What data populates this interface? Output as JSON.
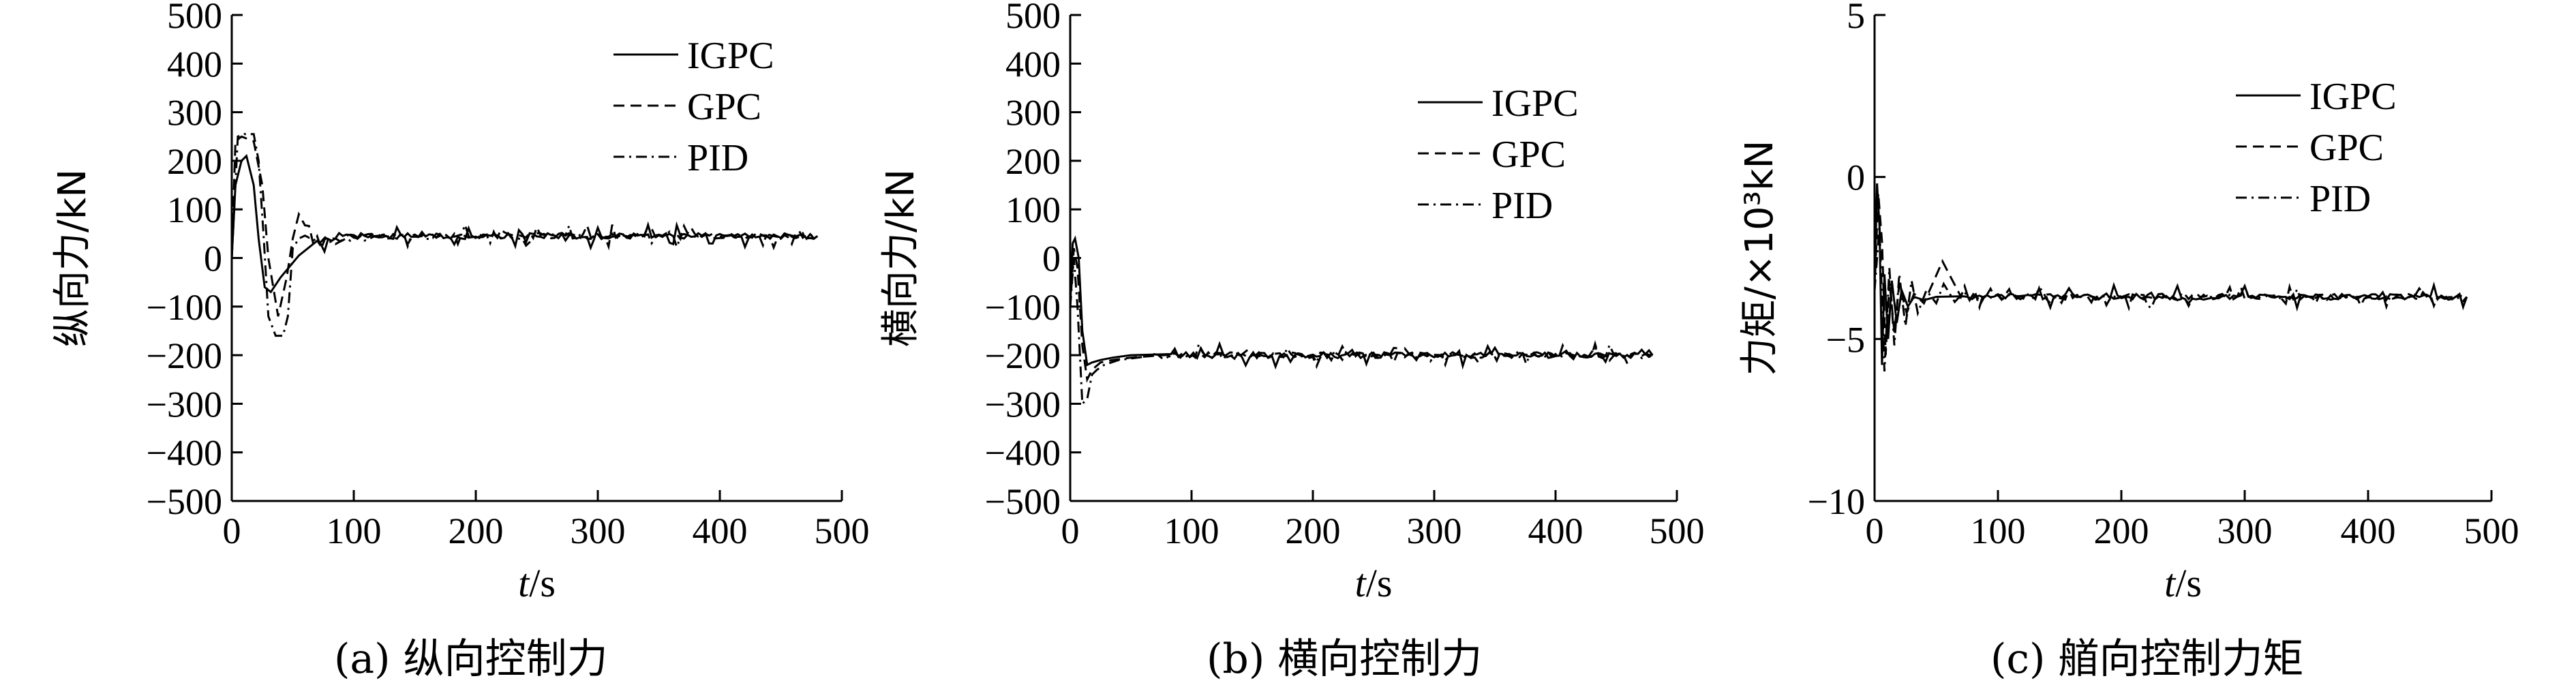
{
  "chart_data": [
    {
      "type": "line",
      "ylabel": "纵向力/kN",
      "xlabel_var": "t",
      "xlabel_unit": "/s",
      "caption": "(a) 纵向控制力",
      "xlim": [
        0,
        500
      ],
      "ylim": [
        -500,
        500
      ],
      "xticks": [
        "0",
        "100",
        "200",
        "300",
        "400",
        "500"
      ],
      "yticks": [
        "−500",
        "−400",
        "−300",
        "−200",
        "−100",
        "0",
        "100",
        "200",
        "300",
        "400",
        "500"
      ],
      "legend_position": "top-right",
      "series": [
        {
          "name": "IGPC",
          "style": "solid",
          "x": [
            0,
            3,
            8,
            12,
            18,
            22,
            27,
            32,
            40,
            55,
            70,
            85,
            100,
            150,
            200,
            250,
            300,
            350,
            400,
            450,
            480
          ],
          "y": [
            0,
            150,
            200,
            210,
            150,
            40,
            -60,
            -70,
            -40,
            5,
            30,
            40,
            45,
            45,
            45,
            45,
            45,
            45,
            45,
            45,
            45
          ]
        },
        {
          "name": "GPC",
          "style": "dashed",
          "x": [
            0,
            3,
            8,
            18,
            25,
            30,
            38,
            45,
            50,
            55,
            60,
            70,
            80,
            100,
            150,
            200,
            250,
            300,
            350,
            400,
            450,
            480
          ],
          "y": [
            0,
            240,
            250,
            240,
            150,
            0,
            -120,
            -40,
            40,
            90,
            70,
            40,
            35,
            45,
            45,
            45,
            45,
            45,
            45,
            45,
            45,
            45
          ]
        },
        {
          "name": "PID",
          "style": "dash-dot",
          "x": [
            0,
            5,
            10,
            18,
            22,
            26,
            30,
            36,
            42,
            46,
            50,
            55,
            60,
            70,
            85,
            100,
            150,
            200,
            250,
            300,
            350,
            400,
            450,
            480
          ],
          "y": [
            0,
            250,
            255,
            255,
            200,
            50,
            -120,
            -160,
            -160,
            -120,
            20,
            40,
            50,
            30,
            30,
            40,
            45,
            45,
            45,
            45,
            45,
            45,
            45,
            45
          ]
        }
      ]
    },
    {
      "type": "line",
      "ylabel": "横向力/kN",
      "xlabel_var": "t",
      "xlabel_unit": "/s",
      "caption": "(b) 横向控制力",
      "xlim": [
        0,
        500
      ],
      "ylim": [
        -500,
        500
      ],
      "xticks": [
        "0",
        "100",
        "200",
        "300",
        "400",
        "500"
      ],
      "yticks": [
        "−500",
        "−400",
        "−300",
        "−200",
        "−100",
        "0",
        "100",
        "200",
        "300",
        "400",
        "500"
      ],
      "legend_position": "top-right",
      "series": [
        {
          "name": "IGPC",
          "style": "solid",
          "x": [
            0,
            2,
            4,
            7,
            10,
            14,
            18,
            25,
            35,
            50,
            80,
            120,
            160,
            200,
            250,
            300,
            350,
            400,
            450,
            480
          ],
          "y": [
            -100,
            30,
            40,
            0,
            -150,
            -220,
            -215,
            -210,
            -205,
            -200,
            -200,
            -200,
            -200,
            -200,
            -200,
            -200,
            -200,
            -200,
            -200,
            -200
          ]
        },
        {
          "name": "GPC",
          "style": "dashed",
          "x": [
            0,
            3,
            6,
            10,
            14,
            18,
            25,
            35,
            50,
            80,
            120,
            200,
            300,
            400,
            480
          ],
          "y": [
            -100,
            20,
            -20,
            -180,
            -250,
            -230,
            -215,
            -210,
            -205,
            -200,
            -200,
            -200,
            -200,
            -200,
            -200
          ]
        },
        {
          "name": "PID",
          "style": "dash-dot",
          "x": [
            0,
            3,
            6,
            10,
            14,
            18,
            22,
            28,
            40,
            60,
            100,
            200,
            300,
            400,
            480
          ],
          "y": [
            -100,
            0,
            -100,
            -300,
            -290,
            -240,
            -230,
            -220,
            -210,
            -205,
            -200,
            -200,
            -200,
            -200,
            -200
          ]
        }
      ]
    },
    {
      "type": "line",
      "ylabel": "力矩/×10³kN",
      "xlabel_var": "t",
      "xlabel_unit": "/s",
      "caption": "(c) 艏向控制力矩",
      "xlim": [
        0,
        500
      ],
      "ylim": [
        -10,
        5
      ],
      "xticks": [
        "0",
        "100",
        "200",
        "300",
        "400",
        "500"
      ],
      "yticks": [
        "−10",
        "−5",
        "0",
        "5"
      ],
      "legend_position": "top-right",
      "series": [
        {
          "name": "IGPC",
          "style": "solid",
          "x": [
            0,
            2,
            4,
            6,
            8,
            11,
            14,
            18,
            22,
            27,
            32,
            40,
            50,
            70,
            100,
            200,
            300,
            400,
            480
          ],
          "y": [
            -3.5,
            -0.2,
            -1.5,
            -5.8,
            -3.0,
            -5.0,
            -3.2,
            -4.5,
            -3.5,
            -4.0,
            -3.7,
            -3.8,
            -3.7,
            -3.7,
            -3.7,
            -3.7,
            -3.7,
            -3.7,
            -3.7
          ]
        },
        {
          "name": "GPC",
          "style": "dashed",
          "x": [
            0,
            3,
            6,
            9,
            12,
            16,
            20,
            26,
            32,
            40,
            55,
            70,
            100,
            200,
            300,
            400,
            480
          ],
          "y": [
            -3.5,
            -0.5,
            -2.0,
            -5.5,
            -3.2,
            -4.8,
            -3.3,
            -4.2,
            -3.6,
            -3.9,
            -2.6,
            -3.7,
            -3.7,
            -3.7,
            -3.7,
            -3.7,
            -3.7
          ]
        },
        {
          "name": "PID",
          "style": "dash-dot",
          "x": [
            0,
            4,
            8,
            12,
            16,
            20,
            25,
            30,
            35,
            42,
            50,
            56,
            65,
            80,
            100,
            200,
            300,
            400,
            480
          ],
          "y": [
            -3.5,
            -1.5,
            -6.0,
            -2.8,
            -5.2,
            -3.0,
            -4.6,
            -3.2,
            -4.2,
            -3.5,
            -3.9,
            -3.3,
            -3.8,
            -3.7,
            -3.7,
            -3.7,
            -3.7,
            -3.7,
            -3.7
          ]
        }
      ]
    }
  ]
}
